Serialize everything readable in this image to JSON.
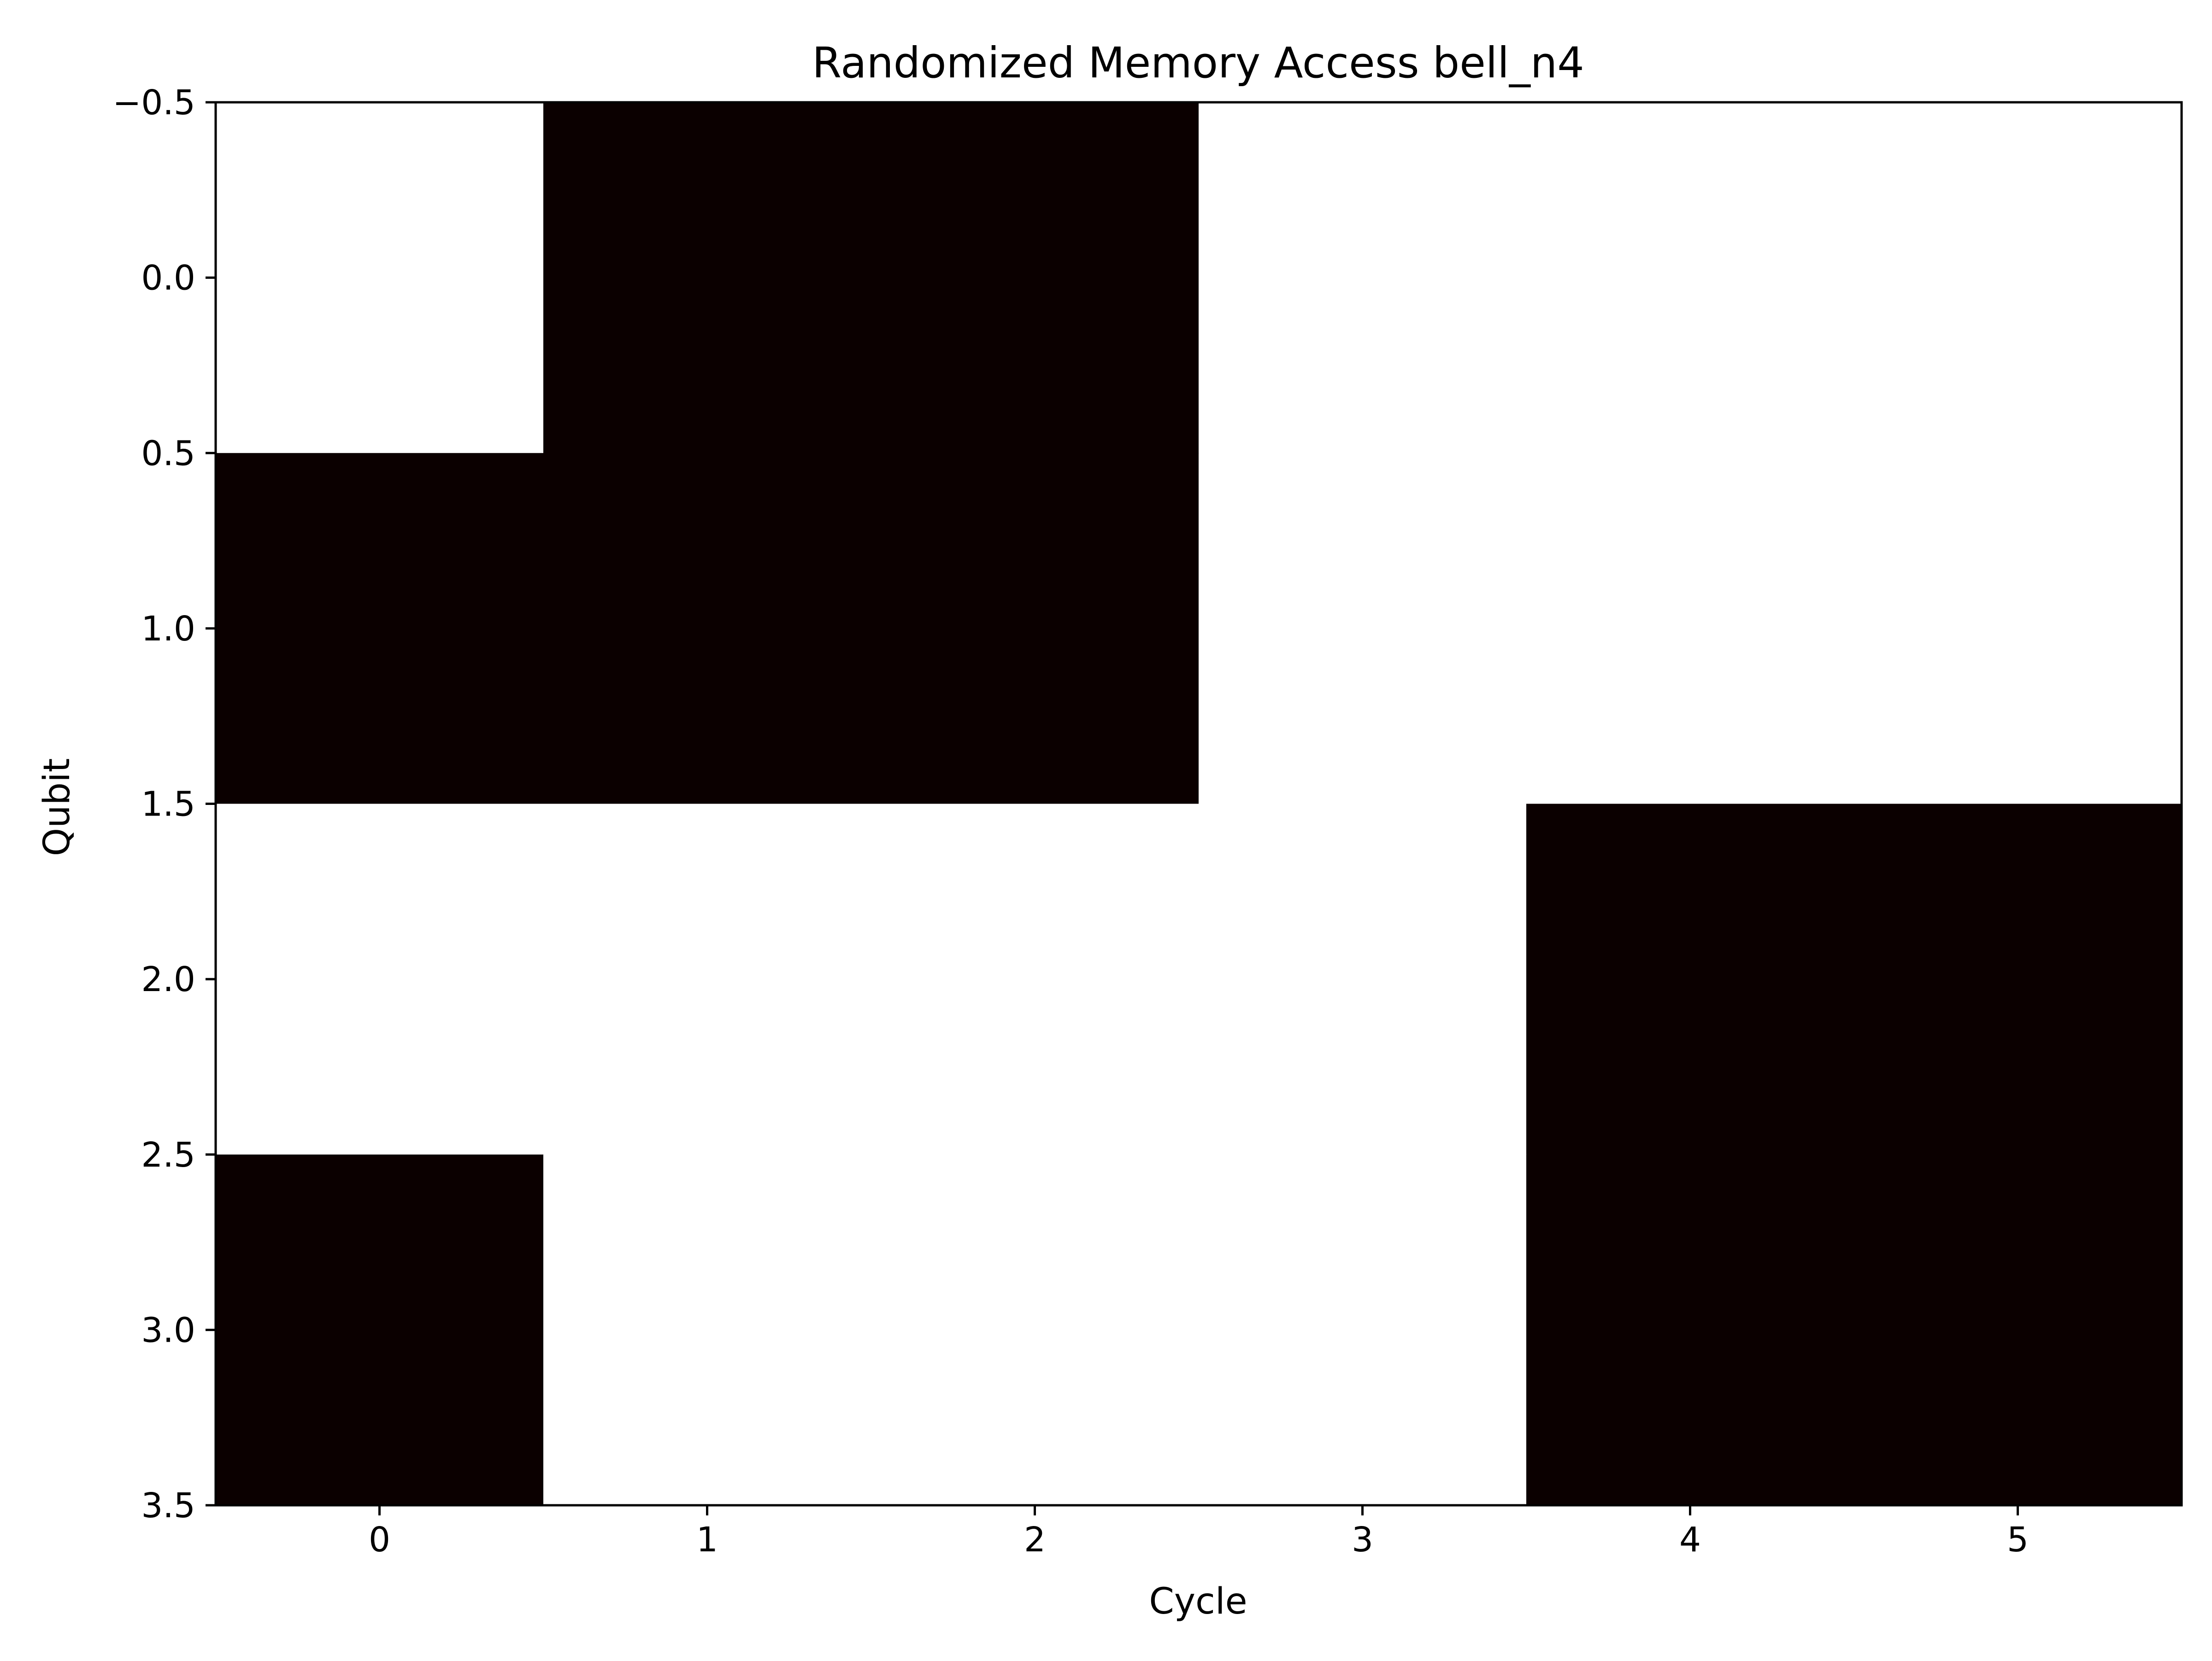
{
  "chart_data": {
    "type": "heatmap",
    "title": "Randomized Memory Access bell_n4",
    "xlabel": "Cycle",
    "ylabel": "Qubit",
    "x_ticks": [
      0,
      1,
      2,
      3,
      4,
      5
    ],
    "x_tick_labels": [
      "0",
      "1",
      "2",
      "3",
      "4",
      "5"
    ],
    "y_ticks": [
      -0.5,
      0.0,
      0.5,
      1.0,
      1.5,
      2.0,
      2.5,
      3.0,
      3.5
    ],
    "y_tick_labels": [
      "−0.5",
      "0.0",
      "0.5",
      "1.0",
      "1.5",
      "2.0",
      "2.5",
      "3.0",
      "3.5"
    ],
    "xlim": [
      -0.5,
      5.5
    ],
    "ylim": [
      3.5,
      -0.5
    ],
    "y_inverted": true,
    "grid": false,
    "colormap": "hot",
    "colors": {
      "low": "#ffffff",
      "high": "#0b0000"
    },
    "rows": [
      0,
      1,
      2,
      3
    ],
    "columns": [
      0,
      1,
      2,
      3,
      4,
      5
    ],
    "values": [
      [
        0,
        1,
        1,
        0,
        0,
        0
      ],
      [
        1,
        1,
        1,
        0,
        0,
        0
      ],
      [
        0,
        0,
        0,
        0,
        1,
        1
      ],
      [
        1,
        0,
        0,
        0,
        1,
        1
      ]
    ]
  }
}
